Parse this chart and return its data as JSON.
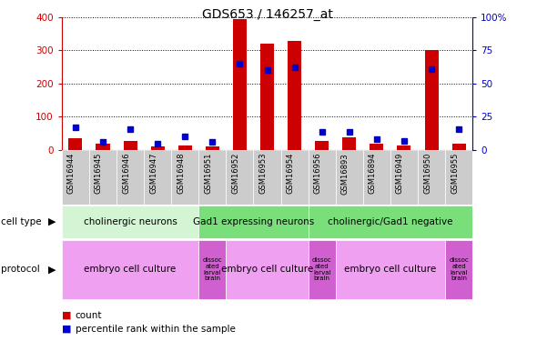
{
  "title": "GDS653 / 146257_at",
  "samples": [
    "GSM16944",
    "GSM16945",
    "GSM16946",
    "GSM16947",
    "GSM16948",
    "GSM16951",
    "GSM16952",
    "GSM16953",
    "GSM16954",
    "GSM16956",
    "GSM16893",
    "GSM16894",
    "GSM16949",
    "GSM16950",
    "GSM16955"
  ],
  "counts": [
    35,
    18,
    28,
    12,
    15,
    10,
    395,
    320,
    328,
    28,
    38,
    20,
    15,
    302,
    20
  ],
  "percentile": [
    17,
    6,
    16,
    5,
    10,
    6,
    65,
    60,
    62,
    14,
    14,
    8,
    7,
    61,
    16
  ],
  "ylim_left": [
    0,
    400
  ],
  "ylim_right": [
    0,
    100
  ],
  "yticks_left": [
    0,
    100,
    200,
    300,
    400
  ],
  "yticks_right": [
    0,
    25,
    50,
    75,
    100
  ],
  "yticklabels_right": [
    "0",
    "25",
    "50",
    "75",
    "100%"
  ],
  "cell_type_groups": [
    {
      "label": "cholinergic neurons",
      "start": 0,
      "end": 5,
      "color": "#d4f5d4"
    },
    {
      "label": "Gad1 expressing neurons",
      "start": 5,
      "end": 9,
      "color": "#7adf7a"
    },
    {
      "label": "cholinergic/Gad1 negative",
      "start": 9,
      "end": 15,
      "color": "#7adf7a"
    }
  ],
  "protocol_groups": [
    {
      "label": "embryo cell culture",
      "start": 0,
      "end": 5,
      "color": "#f0a0f0"
    },
    {
      "label": "dissoc\nated\nlarval\nbrain",
      "start": 5,
      "end": 6,
      "color": "#d060d0"
    },
    {
      "label": "embryo cell culture",
      "start": 6,
      "end": 9,
      "color": "#f0a0f0"
    },
    {
      "label": "dissoc\nated\nlarval\nbrain",
      "start": 9,
      "end": 10,
      "color": "#d060d0"
    },
    {
      "label": "embryo cell culture",
      "start": 10,
      "end": 14,
      "color": "#f0a0f0"
    },
    {
      "label": "dissoc\nated\nlarval\nbrain",
      "start": 14,
      "end": 15,
      "color": "#d060d0"
    }
  ],
  "bar_color": "#cc0000",
  "square_color": "#0000cc",
  "axis_left_color": "#cc0000",
  "axis_right_color": "#0000cc",
  "sample_bg_color": "#cccccc",
  "sample_text_color": "#000000"
}
